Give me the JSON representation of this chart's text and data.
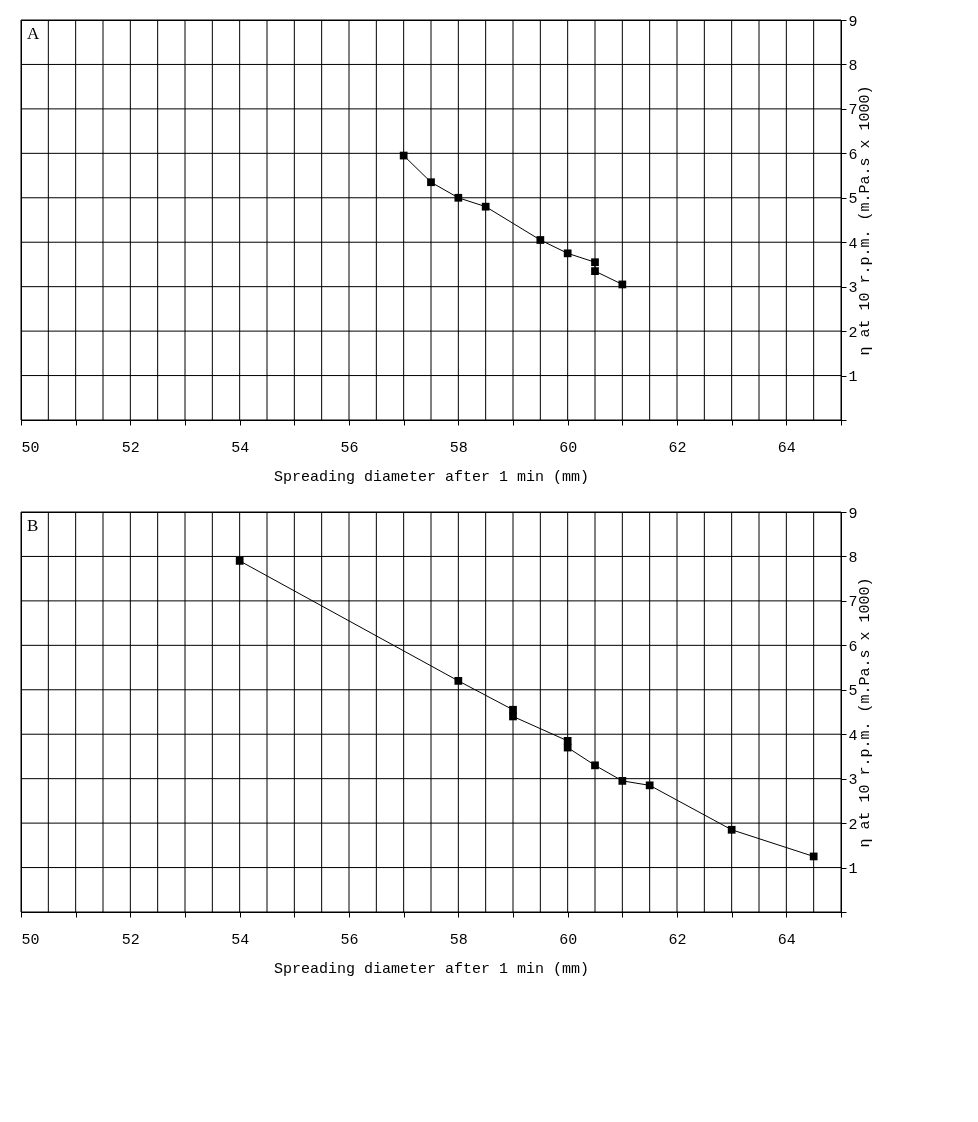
{
  "chart_data": [
    {
      "type": "line",
      "annotations": [
        "A"
      ],
      "xlabel": "Spreading diameter after 1 min (mm)",
      "ylabel": "η at 10 r.p.m. (m.Pa.s x 1000)",
      "x": [
        57,
        57.5,
        58,
        58.5,
        59.5,
        60,
        60.5,
        60.5,
        61
      ],
      "series": [
        {
          "color": "#000000",
          "values": [
            5.95,
            5.35,
            5.0,
            4.8,
            4.05,
            3.75,
            3.55,
            3.35,
            3.05
          ]
        }
      ],
      "xlim": [
        50,
        65
      ],
      "ylim": [
        0,
        9
      ],
      "xticks": [
        50,
        {
          "value": 50.5,
          "label": null
        },
        {
          "value": 51,
          "label": null
        },
        {
          "value": 51.5,
          "label": null
        },
        52,
        {
          "value": 52.5,
          "label": null
        },
        {
          "value": 53,
          "label": null
        },
        {
          "value": 53.5,
          "label": null
        },
        54,
        {
          "value": 54.5,
          "label": null
        },
        {
          "value": 55,
          "label": null
        },
        {
          "value": 55.5,
          "label": null
        },
        56,
        {
          "value": 56.5,
          "label": null
        },
        {
          "value": 57,
          "label": null
        },
        {
          "value": 57.5,
          "label": null
        },
        58,
        {
          "value": 58.5,
          "label": null
        },
        {
          "value": 59,
          "label": null
        },
        {
          "value": 59.5,
          "label": null
        },
        60,
        {
          "value": 60.5,
          "label": null
        },
        {
          "value": 61,
          "label": null
        },
        {
          "value": 61.5,
          "label": null
        },
        62,
        {
          "value": 62.5,
          "label": null
        },
        {
          "value": 63,
          "label": null
        },
        {
          "value": 63.5,
          "label": null
        },
        64,
        {
          "value": 64.5,
          "label": null
        },
        {
          "value": 65,
          "label": null
        }
      ],
      "yticks": [
        {
          "value": 0,
          "label": null
        },
        1,
        2,
        3,
        4,
        5,
        6,
        7,
        8,
        9
      ],
      "grid": true,
      "marker": "square",
      "line_style": "solid"
    },
    {
      "type": "line",
      "annotations": [
        "B"
      ],
      "xlabel": "Spreading diameter after 1 min (mm)",
      "ylabel": "η at 10 r.p.m. (m.Pa.s x 1000)",
      "x": [
        54,
        58,
        59,
        59,
        60,
        60,
        60.5,
        61,
        61.5,
        63,
        64.5
      ],
      "series": [
        {
          "color": "#000000",
          "values": [
            7.9,
            5.2,
            4.55,
            4.4,
            3.85,
            3.7,
            3.3,
            2.95,
            2.85,
            1.85,
            1.25
          ]
        }
      ],
      "xlim": [
        50,
        65
      ],
      "ylim": [
        0,
        9
      ],
      "xticks": [
        50,
        {
          "value": 50.5,
          "label": null
        },
        {
          "value": 51,
          "label": null
        },
        {
          "value": 51.5,
          "label": null
        },
        52,
        {
          "value": 52.5,
          "label": null
        },
        {
          "value": 53,
          "label": null
        },
        {
          "value": 53.5,
          "label": null
        },
        54,
        {
          "value": 54.5,
          "label": null
        },
        {
          "value": 55,
          "label": null
        },
        {
          "value": 55.5,
          "label": null
        },
        56,
        {
          "value": 56.5,
          "label": null
        },
        {
          "value": 57,
          "label": null
        },
        {
          "value": 57.5,
          "label": null
        },
        58,
        {
          "value": 58.5,
          "label": null
        },
        {
          "value": 59,
          "label": null
        },
        {
          "value": 59.5,
          "label": null
        },
        60,
        {
          "value": 60.5,
          "label": null
        },
        {
          "value": 61,
          "label": null
        },
        {
          "value": 61.5,
          "label": null
        },
        62,
        {
          "value": 62.5,
          "label": null
        },
        {
          "value": 63,
          "label": null
        },
        {
          "value": 63.5,
          "label": null
        },
        64,
        {
          "value": 64.5,
          "label": null
        },
        {
          "value": 65,
          "label": null
        }
      ],
      "yticks": [
        {
          "value": 0,
          "label": null
        },
        1,
        2,
        3,
        4,
        5,
        6,
        7,
        8,
        9
      ],
      "grid": true,
      "marker": "square",
      "line_style": "solid"
    }
  ]
}
